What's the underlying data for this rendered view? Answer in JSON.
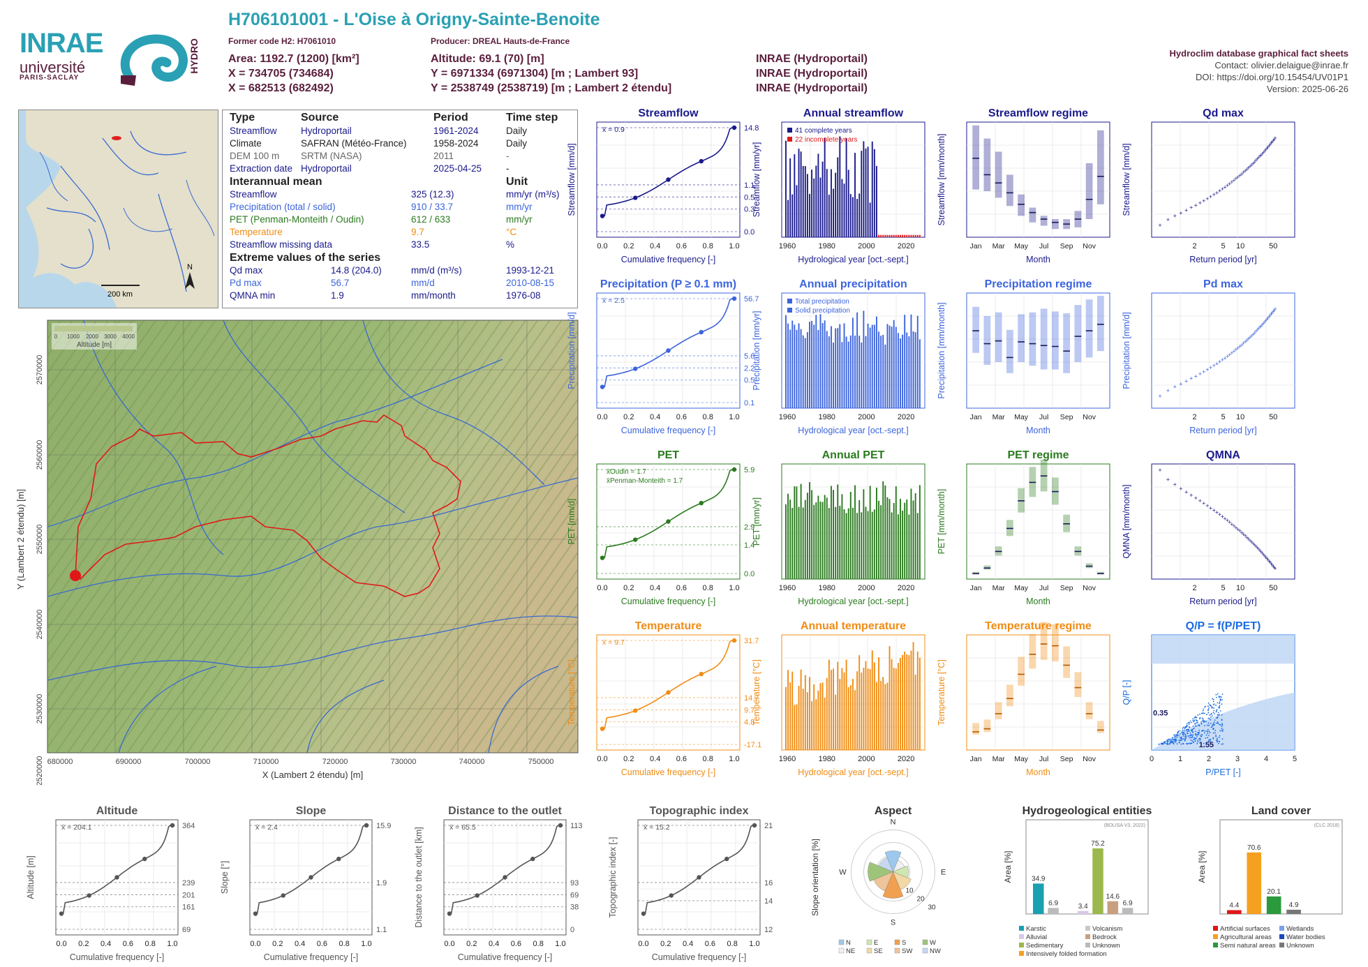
{
  "header": {
    "title": "H706101001 - L'Oise à Origny-Sainte-Benoite",
    "former_code": "Former code H2: H7061010",
    "producer": "Producer: DREAL Hauts-de-France",
    "area": "Area: 1192.7 (1200) [km²]",
    "altitude": "Altitude: 69.1 (70) [m]",
    "x93": "X = 734705 (734684)",
    "y93": "Y = 6971334 (6971304) [m ; Lambert 93]",
    "x2e": "X = 682513 (682492)",
    "y2e": "Y = 2538749 (2538719) [m ; Lambert 2 étendu]",
    "src1": "INRAE (Hydroportail)",
    "src2": "INRAE (Hydroportail)",
    "src3": "INRAE (Hydroportail)",
    "db_title": "Hydroclim database graphical fact sheets",
    "contact": "Contact: olivier.delaigue@inrae.fr",
    "doi": "DOI: https://doi.org/10.15454/UV01P1",
    "version": "Version: 2025-06-26"
  },
  "logos": {
    "inrae": "INRAE",
    "univ": "université",
    "ps": "PARIS-SACLAY",
    "hydro": "HYDRO"
  },
  "france_map": {
    "scale": "200 km",
    "north": "N"
  },
  "info_table": {
    "headers": [
      "Type",
      "Source",
      "Period",
      "Time step"
    ],
    "rows": [
      [
        "Streamflow",
        "Hydroportail",
        "1961-2024",
        "Daily"
      ],
      [
        "Climate",
        "SAFRAN (Météo-France)",
        "1958-2024",
        "Daily"
      ],
      [
        "DEM 100 m",
        "SRTM (NASA)",
        "2011",
        "-"
      ],
      [
        "Extraction date",
        "Hydroportail",
        "2025-04-25",
        "-"
      ]
    ],
    "interannual_title": "Interannual mean",
    "unit_title": "Unit",
    "interannual": [
      [
        "Streamflow",
        "325 (12.3)",
        "mm/yr (m³/s)"
      ],
      [
        "Precipitation (total / solid)",
        "910 / 33.7",
        "mm/yr"
      ],
      [
        "PET (Penman-Monteith / Oudin)",
        "612 / 633",
        "mm/yr"
      ],
      [
        "Temperature",
        "9.7",
        "°C"
      ],
      [
        "Streamflow missing data",
        "33.5",
        "%"
      ]
    ],
    "extreme_title": "Extreme values of the series",
    "extremes": [
      [
        "Qd max",
        "14.8 (204.0)",
        "mm/d (m³/s)",
        "1993-12-21"
      ],
      [
        "Pd max",
        "56.7",
        "mm/d",
        "2010-08-15"
      ],
      [
        "QMNA min",
        "1.9",
        "mm/month",
        "1976-08"
      ]
    ]
  },
  "big_map": {
    "legend_title": "Altitude [m]",
    "legend_ticks": [
      "0",
      "1000",
      "2000",
      "3000",
      "4000"
    ],
    "xlabel": "X (Lambert 2 étendu) [m]",
    "ylabel": "Y (Lambert 2 étendu) [m]",
    "xticks": [
      "680000",
      "690000",
      "700000",
      "710000",
      "720000",
      "730000",
      "740000",
      "750000"
    ],
    "yticks": [
      "2570000",
      "2560000",
      "2550000",
      "2540000",
      "2530000",
      "2520000"
    ]
  },
  "chart_data": [
    {
      "id": "streamflow_fdc",
      "type": "line",
      "title": "Streamflow",
      "ylabel": "Streamflow [mm/d]",
      "xlabel": "Cumulative frequency [-]",
      "mean_label": "x̄ = 0.9",
      "x": [
        0,
        0.25,
        0.5,
        0.75,
        1
      ],
      "y": [
        0.04,
        0.3,
        0.5,
        1.1,
        14.8
      ],
      "right_ticks": [
        "14.8",
        "1.1",
        "0.5",
        "0.3",
        "0.0"
      ],
      "color": "#1a1a8c"
    },
    {
      "id": "annual_streamflow",
      "type": "bar",
      "title": "Annual streamflow",
      "ylabel": "Streamflow [mm/yr]",
      "xlabel": "Hydrological year [oct.-sept.]",
      "legend": [
        "41 complete years",
        "22 incomplete years"
      ],
      "xticks": [
        "1960",
        "1980",
        "2000",
        "2020"
      ],
      "color": "#1a1a8c"
    },
    {
      "id": "streamflow_regime",
      "type": "bar",
      "title": "Streamflow regime",
      "ylabel": "Streamflow [mm/month]",
      "xlabel": "Month",
      "months": [
        "Jan",
        "Feb",
        "Mar",
        "Apr",
        "May",
        "Jun",
        "Jul",
        "Aug",
        "Sep",
        "Oct",
        "Nov",
        "Dec"
      ],
      "values": [
        48,
        38,
        33,
        27,
        20,
        15,
        11,
        9,
        8,
        11,
        23,
        37
      ],
      "low": [
        29,
        28,
        24,
        19,
        13,
        9,
        7,
        5,
        5,
        6,
        11,
        20
      ],
      "high": [
        68,
        60,
        52,
        38,
        26,
        18,
        13,
        11,
        11,
        16,
        45,
        65
      ],
      "color": "#1a1a8c"
    },
    {
      "id": "qd_max",
      "type": "scatter",
      "title": "Qd max",
      "ylabel": "Streamflow [mm/d]",
      "xlabel": "Return period [yr]",
      "color": "#1a1a8c"
    },
    {
      "id": "precip_fdc",
      "type": "line",
      "title": "Precipitation (P ≥ 0.1 mm)",
      "ylabel": "Precipitation [mm/d]",
      "xlabel": "Cumulative frequency [-]",
      "mean_label": "x̄ = 2.5",
      "right_ticks": [
        "56.7",
        "5.6",
        "2.2",
        "0.5",
        "0.1"
      ],
      "color": "#3c64dc"
    },
    {
      "id": "annual_precip",
      "type": "bar",
      "title": "Annual precipitation",
      "ylabel": "Precipitation [mm/yr]",
      "xlabel": "Hydrological year [oct.-sept.]",
      "legend": [
        "Total precipitation",
        "Solid precipitation"
      ],
      "color": "#3c64dc"
    },
    {
      "id": "precip_regime",
      "type": "bar",
      "title": "Precipitation regime",
      "ylabel": "Precipitation [mm/month]",
      "xlabel": "Month",
      "months": [
        "Jan",
        "Feb",
        "Mar",
        "Apr",
        "May",
        "Jun",
        "Jul",
        "Aug",
        "Sep",
        "Oct",
        "Nov",
        "Dec"
      ],
      "values": [
        84,
        70,
        73,
        55,
        72,
        70,
        68,
        67,
        62,
        78,
        84,
        91
      ],
      "low": [
        60,
        47,
        50,
        38,
        50,
        46,
        42,
        42,
        38,
        50,
        55,
        62
      ],
      "high": [
        110,
        100,
        104,
        85,
        102,
        104,
        108,
        105,
        103,
        112,
        118,
        122
      ],
      "color": "#3c64dc"
    },
    {
      "id": "pd_max",
      "type": "scatter",
      "title": "Pd max",
      "ylabel": "Precipitation [mm/d]",
      "xlabel": "Return period [yr]",
      "color": "#3c64dc"
    },
    {
      "id": "pet_fdc",
      "type": "line",
      "title": "PET",
      "ylabel": "PET [mm/d]",
      "xlabel": "Cumulative frequency [-]",
      "legend": [
        "x̄Oudin = 1.7",
        "x̄Penman-Monteith = 1.7"
      ],
      "right_ticks": [
        "5.9",
        "2.9",
        "1.4",
        "0.0"
      ],
      "color": "#2a7a1e"
    },
    {
      "id": "annual_pet",
      "type": "bar",
      "title": "Annual PET",
      "ylabel": "PET [mm/yr]",
      "xlabel": "Hydrological year [oct.-sept.]",
      "color": "#2a7a1e"
    },
    {
      "id": "pet_regime",
      "type": "bar",
      "title": "PET regime",
      "ylabel": "PET [mm/month]",
      "xlabel": "Month",
      "months": [
        "Jan",
        "Feb",
        "Mar",
        "Apr",
        "May",
        "Jun",
        "Jul",
        "Aug",
        "Sep",
        "Oct",
        "Nov",
        "Dec"
      ],
      "values": [
        6,
        12,
        30,
        55,
        85,
        105,
        112,
        95,
        60,
        30,
        14,
        6
      ],
      "color": "#2a7a1e"
    },
    {
      "id": "qmna",
      "type": "scatter",
      "title": "QMNA",
      "ylabel": "QMNA [mm/month]",
      "xlabel": "Return period [yr]",
      "color": "#1a1a8c"
    },
    {
      "id": "temp_fdc",
      "type": "line",
      "title": "Temperature",
      "ylabel": "Temperature [°C]",
      "xlabel": "Cumulative frequency [-]",
      "mean_label": "x̄ = 9.7",
      "right_ticks": [
        "31.7",
        "14.7",
        "9.7",
        "4.8",
        "-17.1"
      ],
      "color": "#f08c14"
    },
    {
      "id": "annual_temp",
      "type": "bar",
      "title": "Annual temperature",
      "ylabel": "Temperature [°C]",
      "xlabel": "Hydrological year [oct.-sept.]",
      "color": "#f08c14"
    },
    {
      "id": "temp_regime",
      "type": "bar",
      "title": "Temperature regime",
      "ylabel": "Temperature [°C]",
      "xlabel": "Month",
      "months": [
        "Jan",
        "Feb",
        "Mar",
        "Apr",
        "May",
        "Jun",
        "Jul",
        "Aug",
        "Sep",
        "Oct",
        "Nov",
        "Dec"
      ],
      "values": [
        3,
        3.5,
        6,
        8.5,
        12.5,
        15.8,
        17.5,
        17.2,
        14,
        10.3,
        6,
        3.3
      ],
      "color": "#f08c14"
    },
    {
      "id": "qp_ppet",
      "type": "scatter",
      "title": "Q/P = f(P/PET)",
      "ylabel": "Q/P [-]",
      "xlabel": "P/PET [-]",
      "annotations": [
        "0.35",
        "1.55"
      ],
      "color": "#1a6ce0"
    },
    {
      "id": "altitude",
      "type": "line",
      "title": "Altitude",
      "ylabel": "Altitude [m]",
      "xlabel": "Cumulative frequency [-]",
      "mean_label": "x̄ = 204.1",
      "right_ticks": [
        "364",
        "239",
        "201",
        "161",
        "69"
      ],
      "color": "#555"
    },
    {
      "id": "slope",
      "type": "line",
      "title": "Slope",
      "ylabel": "Slope [°]",
      "xlabel": "Cumulative frequency [-]",
      "mean_label": "x̄ = 2.4",
      "right_ticks": [
        "15.9",
        "1.9",
        "1.1"
      ],
      "color": "#555"
    },
    {
      "id": "distance",
      "type": "line",
      "title": "Distance to the outlet",
      "ylabel": "Distance to the outlet [km]",
      "xlabel": "Cumulative frequency [-]",
      "mean_label": "x̄ = 65.5",
      "right_ticks": [
        "113",
        "93",
        "69",
        "38",
        "0"
      ],
      "color": "#555"
    },
    {
      "id": "topo_index",
      "type": "line",
      "title": "Topographic index",
      "ylabel": "Topographic index [-]",
      "xlabel": "Cumulative frequency [-]",
      "mean_label": "x̄ = 15.2",
      "right_ticks": [
        "21",
        "16",
        "14",
        "12"
      ],
      "color": "#555"
    },
    {
      "id": "aspect",
      "type": "pie",
      "title": "Aspect",
      "ylabel": "Slope orientation [%]",
      "directions": [
        "N",
        "NE",
        "E",
        "SE",
        "S",
        "SW",
        "W",
        "NW"
      ],
      "legend": [
        "N",
        "E",
        "S",
        "W",
        "NE",
        "SE",
        "SW",
        "NW"
      ],
      "ring_labels": [
        "10",
        "20",
        "30"
      ]
    },
    {
      "id": "hydrogeo",
      "type": "bar",
      "title": "Hydrogeological entities",
      "ylabel": "Area [%]",
      "note": "(BDLISA V3, 2022)",
      "values": [
        34.9,
        6.9,
        3.4,
        75.2,
        14.6,
        6.9
      ],
      "legend": [
        "Karstic",
        "Volcanism",
        "Alluvial",
        "Bedrock",
        "Sedimentary",
        "Unknown",
        "Intensively folded formation"
      ]
    },
    {
      "id": "land_cover",
      "type": "bar",
      "title": "Land cover",
      "ylabel": "Area [%]",
      "note": "(CLC 2018)",
      "values": [
        4.4,
        70.6,
        20.1,
        4.9
      ],
      "legend": [
        "Artificial surfaces",
        "Wetlands",
        "Agricultural areas",
        "Water bodies",
        "Semi natural areas",
        "Unknown"
      ]
    }
  ]
}
